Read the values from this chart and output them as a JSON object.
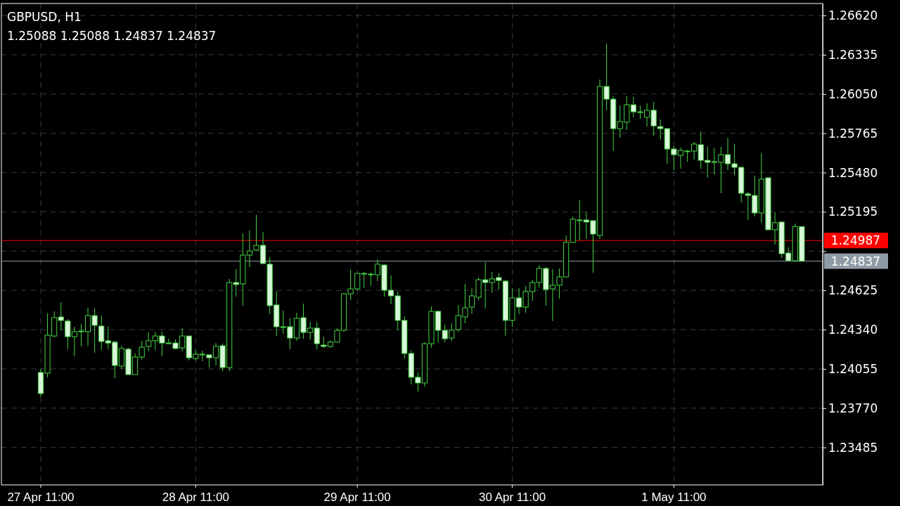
{
  "chart_data": {
    "type": "candlestick",
    "title": "GBPUSD, H1",
    "annotations": [
      "1.25088 1.25088 1.24837 1.24837"
    ],
    "color": "#44d444",
    "categories": [
      "27 Apr 11:00",
      null,
      null,
      null,
      null,
      null,
      null,
      null,
      null,
      null,
      null,
      null,
      null,
      null,
      null,
      null,
      null,
      null,
      null,
      null,
      null,
      null,
      null,
      "28 Apr 11:00",
      null,
      null,
      null,
      null,
      null,
      null,
      null,
      null,
      null,
      null,
      null,
      null,
      null,
      null,
      null,
      null,
      null,
      null,
      null,
      null,
      null,
      null,
      null,
      "29 Apr 11:00",
      null,
      null,
      null,
      null,
      null,
      null,
      null,
      null,
      null,
      null,
      null,
      null,
      null,
      null,
      null,
      null,
      null,
      null,
      null,
      null,
      null,
      null,
      "30 Apr 11:00",
      null,
      null,
      null,
      null,
      null,
      null,
      null,
      null,
      null,
      null,
      null,
      null,
      null,
      null,
      null,
      null,
      null,
      null,
      null,
      null,
      null,
      null,
      null,
      "1 May 11:00",
      null,
      null,
      null,
      null,
      null,
      null,
      null,
      null,
      null,
      null,
      null,
      null,
      null,
      null,
      null,
      null,
      null,
      null,
      null
    ],
    "ohlc": [
      [
        1.24029,
        1.24055,
        1.23851,
        1.23876
      ],
      [
        1.24024,
        1.24458,
        1.23994,
        1.243
      ],
      [
        1.24294,
        1.24473,
        1.24284,
        1.24427
      ],
      [
        1.24432,
        1.24539,
        1.24335,
        1.24407
      ],
      [
        1.24402,
        1.24417,
        1.24198,
        1.24289
      ],
      [
        1.24289,
        1.24361,
        1.24147,
        1.24325
      ],
      [
        1.24325,
        1.24381,
        1.24218,
        1.2433
      ],
      [
        1.24325,
        1.24498,
        1.24223,
        1.24442
      ],
      [
        1.24442,
        1.24493,
        1.24172,
        1.24371
      ],
      [
        1.24366,
        1.24442,
        1.24192,
        1.24254
      ],
      [
        1.24259,
        1.24361,
        1.24198,
        1.24243
      ],
      [
        1.24249,
        1.24259,
        1.23988,
        1.2408
      ],
      [
        1.24075,
        1.24223,
        1.24055,
        1.24203
      ],
      [
        1.24198,
        1.24208,
        1.24014,
        1.24014
      ],
      [
        1.24014,
        1.24167,
        1.24014,
        1.24141
      ],
      [
        1.24141,
        1.24259,
        1.24121,
        1.24213
      ],
      [
        1.24218,
        1.2432,
        1.24182,
        1.24259
      ],
      [
        1.24259,
        1.24325,
        1.24192,
        1.24294
      ],
      [
        1.24294,
        1.24325,
        1.24147,
        1.24243
      ],
      [
        1.24243,
        1.24274,
        1.24233,
        1.24243
      ],
      [
        1.24243,
        1.24269,
        1.24198,
        1.24203
      ],
      [
        1.24208,
        1.24351,
        1.24182,
        1.24294
      ],
      [
        1.24294,
        1.24294,
        1.24116,
        1.24136
      ],
      [
        1.24131,
        1.24192,
        1.24116,
        1.24162
      ],
      [
        1.24162,
        1.24187,
        1.24111,
        1.24157
      ],
      [
        1.24157,
        1.24157,
        1.24065,
        1.24136
      ],
      [
        1.24136,
        1.24243,
        1.2408,
        1.24218
      ],
      [
        1.24223,
        1.24238,
        1.24039,
        1.24065
      ],
      [
        1.24065,
        1.24708,
        1.24039,
        1.24682
      ],
      [
        1.24682,
        1.24779,
        1.2458,
        1.24667
      ],
      [
        1.24672,
        1.25039,
        1.24514,
        1.24881
      ],
      [
        1.24881,
        1.25059,
        1.24794,
        1.24911
      ],
      [
        1.24917,
        1.25172,
        1.24911,
        1.24952
      ],
      [
        1.24952,
        1.25049,
        1.24815,
        1.2482
      ],
      [
        1.24815,
        1.24866,
        1.24453,
        1.24514
      ],
      [
        1.24519,
        1.24621,
        1.24294,
        1.24361
      ],
      [
        1.24361,
        1.24478,
        1.2431,
        1.24356
      ],
      [
        1.24361,
        1.24422,
        1.24198,
        1.24279
      ],
      [
        1.24279,
        1.24463,
        1.24259,
        1.24422
      ],
      [
        1.24427,
        1.24529,
        1.24274,
        1.2432
      ],
      [
        1.2432,
        1.24396,
        1.24269,
        1.24351
      ],
      [
        1.24351,
        1.24396,
        1.24198,
        1.24238
      ],
      [
        1.24228,
        1.24289,
        1.24208,
        1.24218
      ],
      [
        1.24218,
        1.24264,
        1.24208,
        1.24249
      ],
      [
        1.24249,
        1.24351,
        1.24249,
        1.24335
      ],
      [
        1.24335,
        1.24606,
        1.24325,
        1.246
      ],
      [
        1.246,
        1.24774,
        1.24555,
        1.24636
      ],
      [
        1.24636,
        1.24753,
        1.24626,
        1.24748
      ],
      [
        1.24748,
        1.24759,
        1.24641,
        1.24748
      ],
      [
        1.24743,
        1.24753,
        1.24657,
        1.24743
      ],
      [
        1.24738,
        1.2485,
        1.24692,
        1.24815
      ],
      [
        1.24809,
        1.24815,
        1.2458,
        1.24626
      ],
      [
        1.24626,
        1.24733,
        1.24524,
        1.24585
      ],
      [
        1.24585,
        1.24616,
        1.24335,
        1.24407
      ],
      [
        1.24407,
        1.24437,
        1.24131,
        1.24167
      ],
      [
        1.24167,
        1.24192,
        1.23942,
        1.23994
      ],
      [
        1.23994,
        1.24029,
        1.23891,
        1.23953
      ],
      [
        1.23953,
        1.24249,
        1.23927,
        1.24238
      ],
      [
        1.24238,
        1.24509,
        1.24208,
        1.24473
      ],
      [
        1.24473,
        1.24478,
        1.24249,
        1.24335
      ],
      [
        1.24335,
        1.24376,
        1.24249,
        1.24274
      ],
      [
        1.24279,
        1.24386,
        1.24259,
        1.24335
      ],
      [
        1.2434,
        1.24519,
        1.24325,
        1.24442
      ],
      [
        1.24432,
        1.24672,
        1.24386,
        1.24498
      ],
      [
        1.24504,
        1.24641,
        1.24453,
        1.24585
      ],
      [
        1.24575,
        1.24718,
        1.24555,
        1.24702
      ],
      [
        1.24702,
        1.2483,
        1.24493,
        1.24682
      ],
      [
        1.24682,
        1.24759,
        1.24606,
        1.24708
      ],
      [
        1.24718,
        1.24753,
        1.24631,
        1.24697
      ],
      [
        1.24692,
        1.24702,
        1.24294,
        1.24407
      ],
      [
        1.24407,
        1.24641,
        1.24361,
        1.2457
      ],
      [
        1.2457,
        1.24641,
        1.24453,
        1.24504
      ],
      [
        1.24504,
        1.24657,
        1.24463,
        1.24616
      ],
      [
        1.24616,
        1.24702,
        1.24549,
        1.24682
      ],
      [
        1.24682,
        1.24809,
        1.24646,
        1.24784
      ],
      [
        1.24784,
        1.24794,
        1.24514,
        1.24631
      ],
      [
        1.24636,
        1.24779,
        1.24402,
        1.24662
      ],
      [
        1.24662,
        1.24784,
        1.24565,
        1.24723
      ],
      [
        1.24723,
        1.25024,
        1.24718,
        1.24973
      ],
      [
        1.24973,
        1.25161,
        1.24973,
        1.25141
      ],
      [
        1.25136,
        1.25279,
        1.24988,
        1.25136
      ],
      [
        1.25136,
        1.25192,
        1.24998,
        1.25121
      ],
      [
        1.25131,
        1.25131,
        1.24753,
        1.25034
      ],
      [
        1.25024,
        1.26156,
        1.24998,
        1.26105
      ],
      [
        1.26105,
        1.26416,
        1.25932,
        1.26013
      ],
      [
        1.26013,
        1.26034,
        1.25636,
        1.25799
      ],
      [
        1.25799,
        1.25967,
        1.25733,
        1.2585
      ],
      [
        1.25845,
        1.26034,
        1.25789,
        1.25972
      ],
      [
        1.25972,
        1.26028,
        1.25881,
        1.25921
      ],
      [
        1.25921,
        1.25967,
        1.2587,
        1.25921
      ],
      [
        1.25881,
        1.25982,
        1.25814,
        1.25932
      ],
      [
        1.25932,
        1.25993,
        1.25748,
        1.25819
      ],
      [
        1.25814,
        1.25865,
        1.25722,
        1.25799
      ],
      [
        1.25799,
        1.25804,
        1.25544,
        1.25651
      ],
      [
        1.25651,
        1.25671,
        1.25498,
        1.2561
      ],
      [
        1.25605,
        1.25661,
        1.25508,
        1.25641
      ],
      [
        1.25636,
        1.25646,
        1.25559,
        1.25636
      ],
      [
        1.25636,
        1.25702,
        1.25575,
        1.25687
      ],
      [
        1.25682,
        1.25779,
        1.25508,
        1.25569
      ],
      [
        1.25569,
        1.25671,
        1.25442,
        1.25554
      ],
      [
        1.25559,
        1.25661,
        1.25467,
        1.25559
      ],
      [
        1.25554,
        1.25666,
        1.2533,
        1.2561
      ],
      [
        1.2561,
        1.25733,
        1.25498,
        1.25544
      ],
      [
        1.25544,
        1.25687,
        1.25462,
        1.25518
      ],
      [
        1.25518,
        1.25524,
        1.25263,
        1.2533
      ],
      [
        1.25325,
        1.2534,
        1.25136,
        1.25314
      ],
      [
        1.25314,
        1.25457,
        1.25161,
        1.25187
      ],
      [
        1.25187,
        1.2562,
        1.25116,
        1.25432
      ],
      [
        1.25442,
        1.25442,
        1.25065,
        1.25065
      ],
      [
        1.25065,
        1.25192,
        1.24957,
        1.25116
      ],
      [
        1.25121,
        1.25126,
        1.24861,
        1.24891
      ],
      [
        1.24896,
        1.24937,
        1.24835,
        1.2484
      ],
      [
        1.2484,
        1.2511,
        1.2483,
        1.25088
      ],
      [
        1.25088,
        1.25088,
        1.24837,
        1.24837
      ]
    ],
    "ylim": [
      1.23213,
      1.26707
    ],
    "yticks": [
      {
        "value": 1.2662,
        "label": "1.26620"
      },
      {
        "value": 1.26335,
        "label": "1.26335"
      },
      {
        "value": 1.2605,
        "label": "1.26050"
      },
      {
        "value": 1.25765,
        "label": "1.25765"
      },
      {
        "value": 1.2548,
        "label": "1.25480"
      },
      {
        "value": 1.25195,
        "label": "1.25195"
      },
      {
        "value": 1.2491,
        "label": null
      },
      {
        "value": 1.24625,
        "label": "1.24625"
      },
      {
        "value": 1.2434,
        "label": "1.24340"
      },
      {
        "value": 1.24055,
        "label": "1.24055"
      },
      {
        "value": 1.2377,
        "label": "1.23770"
      },
      {
        "value": 1.23485,
        "label": "1.23485"
      }
    ],
    "ref_lines": [
      {
        "axis": "y",
        "value": 1.24987,
        "label": "1.24987",
        "color": "#ff0000"
      },
      {
        "axis": "y",
        "value": 1.24837,
        "label": "1.24837",
        "color": "#8f9ba6"
      }
    ],
    "grid": true
  }
}
